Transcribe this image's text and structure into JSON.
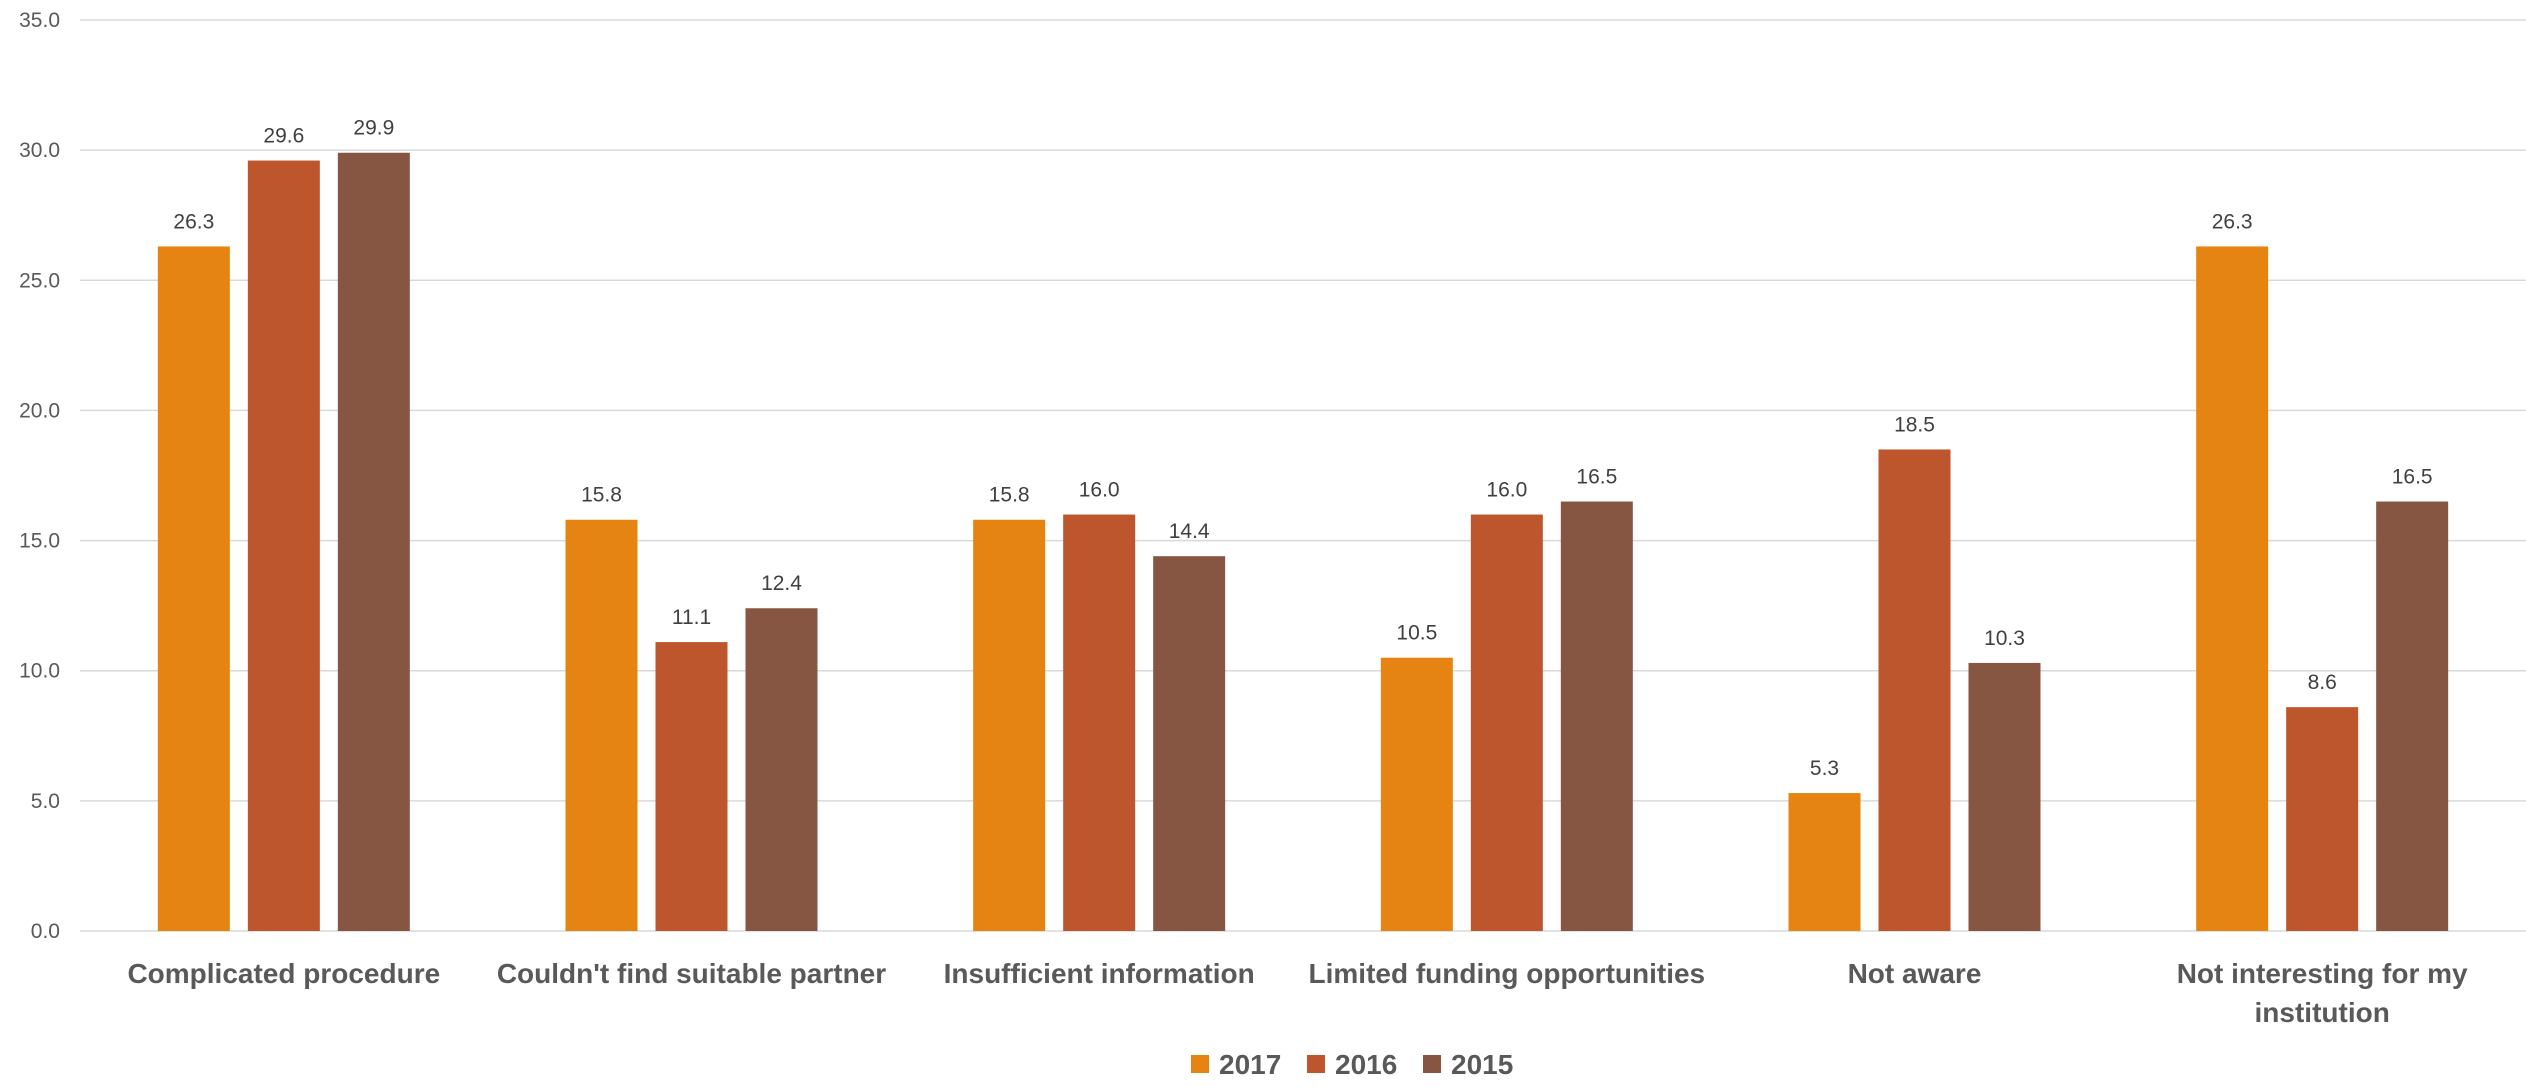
{
  "chart_data": {
    "type": "bar",
    "title": "",
    "xlabel": "",
    "ylabel": "",
    "ylim": [
      0,
      35
    ],
    "yticks": [
      "0.0",
      "5.0",
      "10.0",
      "15.0",
      "20.0",
      "25.0",
      "30.0",
      "35.0"
    ],
    "grid": true,
    "legend_position": "bottom",
    "categories": [
      [
        "Complicated procedure"
      ],
      [
        "Couldn't find suitable partner"
      ],
      [
        "Insufficient information"
      ],
      [
        "Limited funding opportunities"
      ],
      [
        "Not aware"
      ],
      [
        "Not interesting for my",
        "institution"
      ]
    ],
    "series": [
      {
        "name": "2017",
        "color": "#e58413",
        "values": [
          26.3,
          15.8,
          15.8,
          10.5,
          5.3,
          26.3
        ],
        "labels": [
          "26.3",
          "15.8",
          "15.8",
          "10.5",
          "5.3",
          "26.3"
        ]
      },
      {
        "name": "2016",
        "color": "#bd562c",
        "values": [
          29.6,
          11.1,
          16.0,
          16.0,
          18.5,
          8.6
        ],
        "labels": [
          "29.6",
          "11.1",
          "16.0",
          "16.0",
          "18.5",
          "8.6"
        ]
      },
      {
        "name": "2015",
        "color": "#875642",
        "values": [
          29.9,
          12.4,
          14.4,
          16.5,
          10.3,
          16.5
        ],
        "labels": [
          "29.9",
          "12.4",
          "14.4",
          "16.5",
          "10.3",
          "16.5"
        ]
      }
    ]
  }
}
